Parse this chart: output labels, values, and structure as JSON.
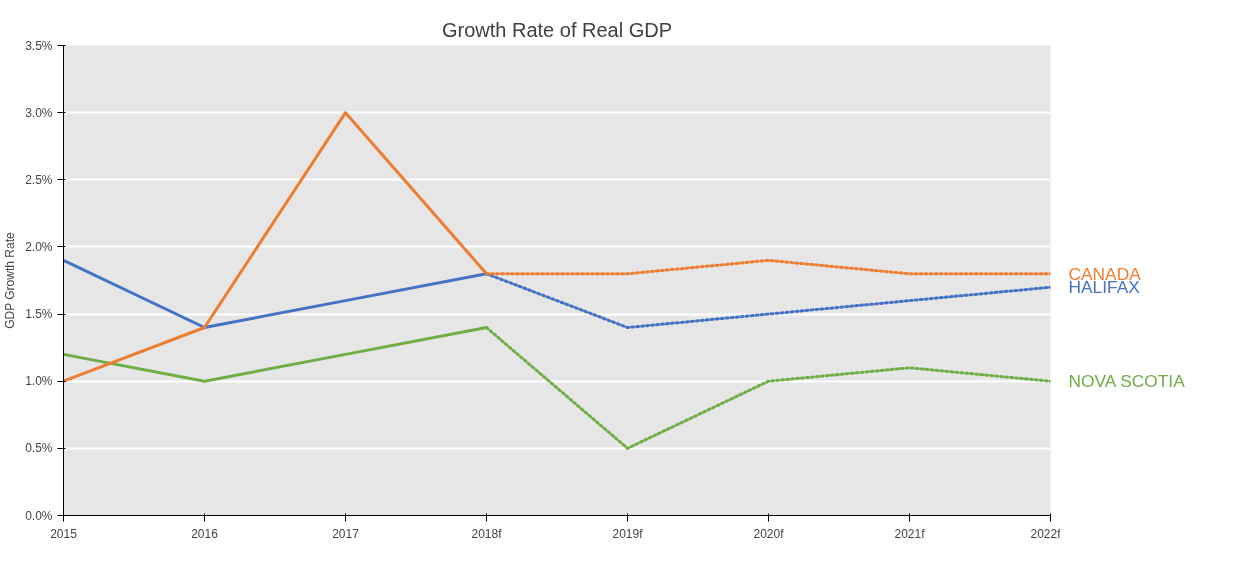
{
  "chart_data": {
    "type": "line",
    "title": "Growth Rate of Real GDP",
    "ylabel": "GDP Growth Rate",
    "categories": [
      "2015",
      "2016",
      "2017",
      "2018f",
      "2019f",
      "2020f",
      "2021f",
      "2022f"
    ],
    "series": [
      {
        "color": "#4472c4",
        "line_style": "solid",
        "values": [
          1.9,
          1.4,
          1.6,
          1.8,
          null,
          null,
          null,
          null
        ]
      },
      {
        "color": "#70ad47",
        "line_style": "solid",
        "values": [
          1.2,
          1.0,
          1.2,
          1.4,
          null,
          null,
          null,
          null
        ]
      },
      {
        "color": "#ed7d31",
        "line_style": "solid",
        "values": [
          1.0,
          1.4,
          3.0,
          1.8,
          null,
          null,
          null,
          null
        ]
      },
      {
        "name": "HALIFAX",
        "color": "#4472c4",
        "line_style": "dotted",
        "values": [
          null,
          null,
          null,
          1.8,
          1.4,
          1.5,
          1.6,
          1.7
        ]
      },
      {
        "name": "NOVA SCOTIA",
        "color": "#70ad47",
        "line_style": "dotted",
        "values": [
          null,
          null,
          null,
          1.4,
          0.5,
          1.0,
          1.1,
          1.0
        ]
      },
      {
        "name": "CANADA",
        "color": "#ed7d31",
        "line_style": "dotted",
        "values": [
          null,
          null,
          null,
          1.8,
          1.8,
          1.9,
          1.8,
          1.8
        ]
      }
    ],
    "ylim": [
      0,
      3.5
    ],
    "yticks": [
      {
        "value": 0,
        "label": "0.0%"
      },
      {
        "value": 0.5,
        "label": "0.5%"
      },
      {
        "value": 1,
        "label": "1.0%"
      },
      {
        "value": 1.5,
        "label": "1.5%"
      },
      {
        "value": 2,
        "label": "2.0%"
      },
      {
        "value": 2.5,
        "label": "2.5%"
      },
      {
        "value": 3,
        "label": "3.0%"
      },
      {
        "value": 3.5,
        "label": "3.5%"
      }
    ],
    "grid": "y",
    "marker": "none"
  }
}
